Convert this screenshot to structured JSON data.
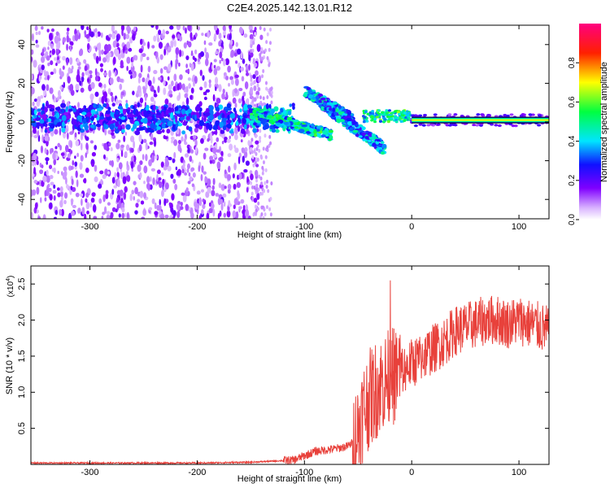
{
  "title": "C2E4.2025.142.13.01.R12",
  "chart_data": [
    {
      "type": "heatmap",
      "xlabel": "Height of straight line (km)",
      "ylabel": "Frequency (Hz)",
      "xlim": [
        -355,
        128
      ],
      "ylim": [
        -50,
        50
      ],
      "xticks": [
        -300,
        -200,
        -100,
        0,
        100
      ],
      "yticks": [
        -40,
        -20,
        0,
        20,
        40
      ],
      "colorbar": {
        "label": "Normalized spectral amplitude",
        "range": [
          0,
          1
        ],
        "ticks": [
          0.0,
          0.2,
          0.4,
          0.6,
          0.8
        ],
        "tick_labels": [
          "0.0",
          "0.2",
          "0.4",
          "0.6",
          "0.8"
        ],
        "colormap": "rainbow (white-violet-blue-cyan-green-yellow-red-magenta)"
      },
      "features": [
        {
          "name": "carrier line",
          "x": [
            -355,
            128
          ],
          "y_center": 3,
          "note": "strong band near 0-5 Hz, becomes a narrow saturated line above 0 km"
        },
        {
          "name": "upper branch",
          "x": [
            -100,
            -60
          ],
          "y_range": [
            0,
            18
          ]
        },
        {
          "name": "lower branch",
          "x": [
            -80,
            -25
          ],
          "y_range": [
            -15,
            10
          ]
        },
        {
          "name": "noise region",
          "x": [
            -355,
            -140
          ],
          "y_range": [
            -50,
            50
          ]
        }
      ],
      "grid": false
    },
    {
      "type": "line",
      "xlabel": "Height of straight line (km)",
      "ylabel": "SNR (10 * v/v)",
      "yscale_label": "(x10^4)",
      "scale_base": "(x10",
      "scale_exp": "4",
      "xlim": [
        -355,
        128
      ],
      "ylim": [
        0,
        2.75
      ],
      "xticks": [
        -300,
        -200,
        -100,
        0,
        100
      ],
      "yticks": [
        0.5,
        1.0,
        1.5,
        2.0,
        2.5
      ],
      "ytick_labels": [
        "0.5",
        "1.0",
        "1.5",
        "2.0",
        "2.5"
      ],
      "series": [
        {
          "color": "#e8413b",
          "x": [
            -355,
            -300,
            -250,
            -200,
            -150,
            -110,
            -100,
            -90,
            -80,
            -70,
            -60,
            -55,
            -50,
            -45,
            -40,
            -35,
            -30,
            -25,
            -20,
            -15,
            -10,
            0,
            5,
            10,
            20,
            30,
            40,
            50,
            60,
            70,
            80,
            90,
            100,
            110,
            120,
            128
          ],
          "values": [
            0.02,
            0.02,
            0.02,
            0.02,
            0.03,
            0.06,
            0.12,
            0.18,
            0.2,
            0.22,
            0.25,
            0.3,
            0.5,
            0.75,
            0.9,
            1.0,
            1.1,
            1.15,
            1.2,
            1.25,
            1.3,
            1.4,
            1.45,
            1.5,
            1.6,
            1.7,
            1.85,
            1.9,
            1.95,
            2.0,
            2.0,
            1.95,
            2.0,
            1.95,
            1.9,
            1.85
          ]
        }
      ],
      "grid": false
    }
  ]
}
